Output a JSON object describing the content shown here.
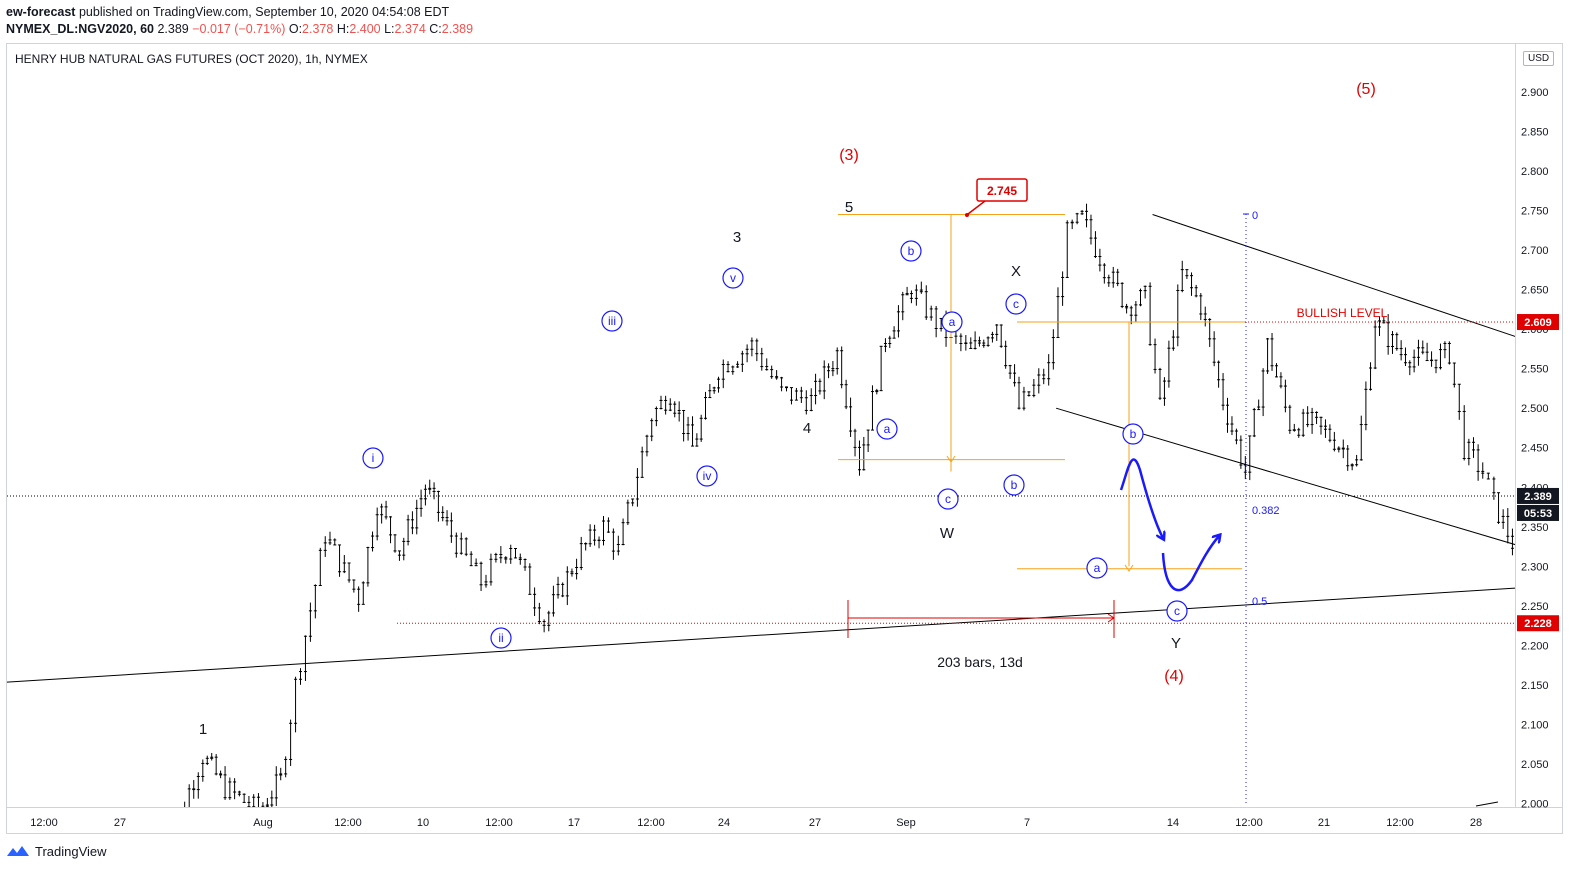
{
  "header": {
    "publisher": "ew-forecast",
    "published_text": "published on TradingView.com, September 10, 2020 04:54:08 EDT",
    "symbol": "NYMEX_DL:NGV2020, 60",
    "last": "2.389",
    "change": "−0.017 (−0.71%)",
    "o_label": "O:",
    "o": "2.378",
    "h_label": "H:",
    "h": "2.400",
    "l_label": "L:",
    "l": "2.374",
    "c_label": "C:",
    "c": "2.389"
  },
  "chart_title": "HENRY HUB NATURAL GAS FUTURES (OCT 2020), 1h, NYMEX",
  "currency": "USD",
  "footer": {
    "brand": "TradingView"
  },
  "colors": {
    "wave_blue": "#1a1aff",
    "wave_red": "#e00000",
    "fib_orange": "#f7a21b",
    "candle": "#000000"
  },
  "chart_data": {
    "type": "candlestick",
    "yaxis": {
      "min": 2.0,
      "max": 2.9,
      "ticks": [
        "2.900",
        "2.850",
        "2.800",
        "2.750",
        "2.700",
        "2.650",
        "2.600",
        "2.550",
        "2.500",
        "2.450",
        "2.400",
        "2.350",
        "2.300",
        "2.250",
        "2.200",
        "2.150",
        "2.100",
        "2.050",
        "2.000"
      ]
    },
    "xaxis_ticks": [
      "12:00",
      "27",
      "Aug",
      "12:00",
      "10",
      "12:00",
      "17",
      "12:00",
      "24",
      "27",
      "Sep",
      "7",
      "14",
      "12:00",
      "21",
      "12:00",
      "28"
    ],
    "price_series": [
      [
        0.0,
        1.93
      ],
      [
        0.55,
        2.06
      ],
      [
        0.85,
        2.02
      ],
      [
        1.3,
        1.99
      ],
      [
        1.6,
        2.03
      ],
      [
        1.8,
        2.15
      ],
      [
        2.2,
        2.34
      ],
      [
        2.65,
        2.26
      ],
      [
        2.9,
        2.38
      ],
      [
        3.2,
        2.32
      ],
      [
        3.55,
        2.4
      ],
      [
        3.9,
        2.34
      ],
      [
        4.3,
        2.28
      ],
      [
        4.7,
        2.33
      ],
      [
        5.15,
        2.23
      ],
      [
        5.65,
        2.32
      ],
      [
        5.95,
        2.35
      ],
      [
        6.15,
        2.32
      ],
      [
        6.6,
        2.49
      ],
      [
        6.85,
        2.52
      ],
      [
        7.15,
        2.45
      ],
      [
        7.5,
        2.55
      ],
      [
        7.95,
        2.58
      ],
      [
        8.35,
        2.52
      ],
      [
        8.75,
        2.51
      ],
      [
        9.1,
        2.57
      ],
      [
        9.4,
        2.43
      ],
      [
        9.75,
        2.59
      ],
      [
        10.1,
        2.65
      ],
      [
        10.5,
        2.6
      ],
      [
        10.9,
        2.57
      ],
      [
        11.25,
        2.61
      ],
      [
        11.55,
        2.5
      ],
      [
        11.95,
        2.55
      ],
      [
        12.2,
        2.72
      ],
      [
        12.4,
        2.74
      ],
      [
        12.7,
        2.68
      ],
      [
        13.0,
        2.63
      ],
      [
        13.25,
        2.64
      ],
      [
        13.45,
        2.5
      ],
      [
        13.75,
        2.67
      ],
      [
        14.0,
        2.63
      ],
      [
        14.3,
        2.51
      ],
      [
        14.6,
        2.42
      ],
      [
        14.9,
        2.58
      ],
      [
        15.2,
        2.48
      ],
      [
        15.5,
        2.48
      ],
      [
        15.8,
        2.46
      ],
      [
        16.1,
        2.43
      ],
      [
        16.35,
        2.61
      ],
      [
        16.7,
        2.57
      ],
      [
        17.05,
        2.56
      ],
      [
        17.35,
        2.57
      ],
      [
        17.55,
        2.45
      ],
      [
        17.8,
        2.42
      ],
      [
        17.95,
        2.38
      ],
      [
        18.2,
        2.33
      ],
      [
        18.35,
        2.39
      ],
      [
        18.55,
        2.36
      ],
      [
        18.75,
        2.38
      ],
      [
        19.0,
        2.39
      ]
    ],
    "scenario_path": [
      [
        19.0,
        2.39
      ],
      [
        19.35,
        2.45
      ],
      [
        19.85,
        2.35
      ],
      [
        20.3,
        2.28
      ],
      [
        20.7,
        2.27
      ],
      [
        21.25,
        2.33
      ]
    ],
    "trendline_lower": [
      [
        -6.1,
        2.13
      ],
      [
        31.5,
        2.35
      ]
    ],
    "channel_upper": [
      [
        13.35,
        2.745
      ],
      [
        24.6,
        2.39
      ]
    ],
    "channel_lower": [
      [
        12.05,
        2.5
      ],
      [
        24.6,
        2.15
      ]
    ],
    "levels": [
      {
        "name": "BULLISH LEVEL",
        "value": 2.609,
        "color": "#e00000"
      },
      {
        "name": "last",
        "value": 2.389,
        "color": "#000000"
      },
      {
        "name": "target",
        "value": 2.228,
        "color": "#e00000"
      }
    ],
    "price_tags": {
      "bullish": "2.609",
      "last": "2.389",
      "countdown": "05:53",
      "target": "2.228"
    },
    "callout": "2.745",
    "fib_labels": [
      "0",
      "0.382",
      "0.5"
    ],
    "measure_label": "203 bars, 13d",
    "bullish_label": "BULLISH LEVEL",
    "wave_labels_red": [
      "(3)",
      "(4)",
      "(5)"
    ],
    "wave_labels_black": [
      "1",
      "3",
      "4",
      "5",
      "W",
      "X",
      "Y"
    ],
    "wave_labels_circled": [
      "i",
      "ii",
      "iii",
      "iv",
      "v",
      "a",
      "b",
      "c",
      "a",
      "c",
      "b",
      "a",
      "b",
      "c"
    ]
  }
}
